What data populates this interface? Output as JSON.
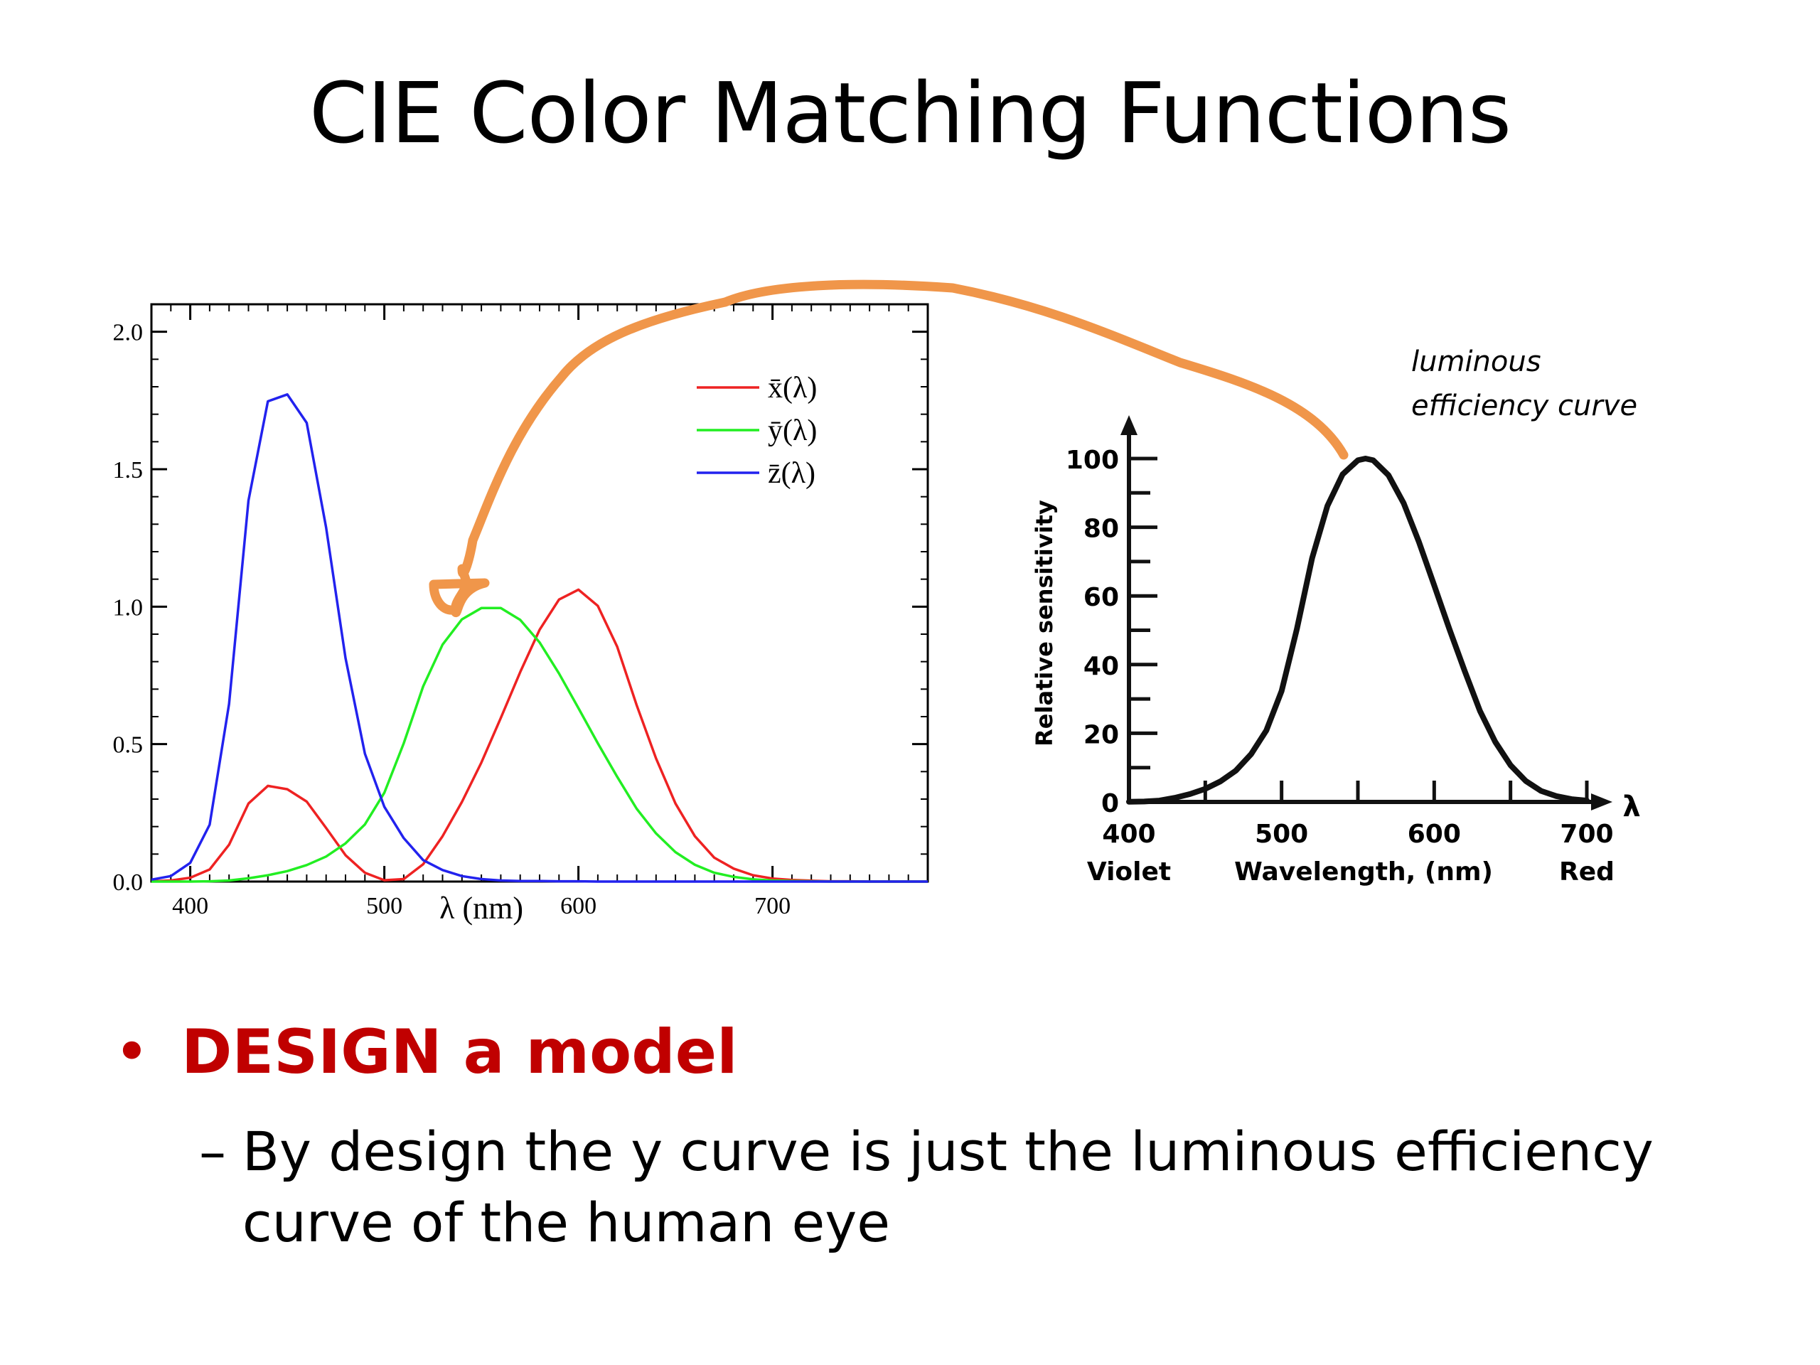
{
  "title": "CIE Color Matching Functions",
  "chart_data": [
    {
      "type": "line",
      "x_range": [
        380,
        780
      ],
      "ylim": [
        0,
        2.1
      ],
      "xticks": [
        400,
        500,
        600,
        700
      ],
      "yticks": [
        "0.0",
        "0.5",
        "1.0",
        "1.5",
        "2.0"
      ],
      "xlabel": "λ (nm)",
      "ylabel": "",
      "grid": false,
      "legend": "top-right",
      "x": [
        380,
        390,
        400,
        410,
        420,
        430,
        440,
        450,
        460,
        470,
        480,
        490,
        500,
        510,
        520,
        530,
        540,
        550,
        560,
        570,
        580,
        590,
        600,
        610,
        620,
        630,
        640,
        650,
        660,
        670,
        680,
        690,
        700,
        710,
        720,
        730,
        740,
        750,
        760,
        770,
        780
      ],
      "series": [
        {
          "name": "x̄(λ)",
          "color": "#ee2222",
          "values": [
            0.001,
            0.004,
            0.014,
            0.044,
            0.134,
            0.284,
            0.348,
            0.336,
            0.291,
            0.195,
            0.096,
            0.032,
            0.005,
            0.009,
            0.063,
            0.165,
            0.29,
            0.433,
            0.595,
            0.762,
            0.916,
            1.026,
            1.062,
            1.003,
            0.854,
            0.642,
            0.448,
            0.284,
            0.165,
            0.087,
            0.047,
            0.023,
            0.011,
            0.006,
            0.003,
            0.001,
            0.001,
            0.0,
            0.0,
            0.0,
            0.0
          ]
        },
        {
          "name": "ȳ(λ)",
          "color": "#22ee22",
          "values": [
            0.0,
            0.0,
            0.0,
            0.001,
            0.004,
            0.012,
            0.023,
            0.038,
            0.06,
            0.091,
            0.139,
            0.208,
            0.323,
            0.503,
            0.71,
            0.862,
            0.954,
            0.995,
            0.995,
            0.952,
            0.87,
            0.757,
            0.631,
            0.503,
            0.381,
            0.265,
            0.175,
            0.107,
            0.061,
            0.032,
            0.017,
            0.008,
            0.004,
            0.002,
            0.001,
            0.0,
            0.0,
            0.0,
            0.0,
            0.0,
            0.0
          ]
        },
        {
          "name": "z̄(λ)",
          "color": "#2222ee",
          "values": [
            0.007,
            0.02,
            0.068,
            0.207,
            0.646,
            1.386,
            1.747,
            1.772,
            1.669,
            1.288,
            0.813,
            0.465,
            0.272,
            0.158,
            0.078,
            0.042,
            0.02,
            0.009,
            0.004,
            0.002,
            0.002,
            0.001,
            0.001,
            0.0,
            0.0,
            0.0,
            0.0,
            0.0,
            0.0,
            0.0,
            0.0,
            0.0,
            0.0,
            0.0,
            0.0,
            0.0,
            0.0,
            0.0,
            0.0,
            0.0,
            0.0
          ]
        }
      ]
    },
    {
      "type": "line",
      "x_range": [
        400,
        700
      ],
      "ylim": [
        0,
        100
      ],
      "xticks": [
        400,
        500,
        600,
        700
      ],
      "yticks": [
        "0",
        "20",
        "40",
        "60",
        "80",
        "100"
      ],
      "x_sublabels": {
        "400": "Violet",
        "700": "Red"
      },
      "xlabel": "Wavelength, (nm)",
      "x_arrow_label": "λ",
      "ylabel": "Relative sensitivity",
      "annotation": "luminous efficiency curve",
      "x": [
        400,
        410,
        420,
        430,
        440,
        450,
        460,
        470,
        480,
        490,
        500,
        510,
        520,
        530,
        540,
        550,
        555,
        560,
        570,
        580,
        590,
        600,
        610,
        620,
        630,
        640,
        650,
        660,
        670,
        680,
        690,
        700
      ],
      "series": [
        {
          "name": "",
          "color": "#111111",
          "values": [
            0.04,
            0.12,
            0.4,
            1.2,
            2.3,
            3.8,
            6.0,
            9.1,
            13.9,
            20.8,
            32.3,
            50.3,
            71.0,
            86.2,
            95.4,
            99.5,
            100,
            99.5,
            95.2,
            87.0,
            75.7,
            63.1,
            50.3,
            38.1,
            26.5,
            17.5,
            10.7,
            6.1,
            3.2,
            1.7,
            0.8,
            0.4
          ]
        }
      ]
    }
  ],
  "bullet": {
    "text": "DESIGN a model",
    "color": "#c00000",
    "marker": "•"
  },
  "sub_bullet": {
    "dash": "–",
    "text": "By design the y curve is just the luminous efficiency curve of the human eye"
  },
  "colors": {
    "annotation_arrow": "#f0964a"
  }
}
